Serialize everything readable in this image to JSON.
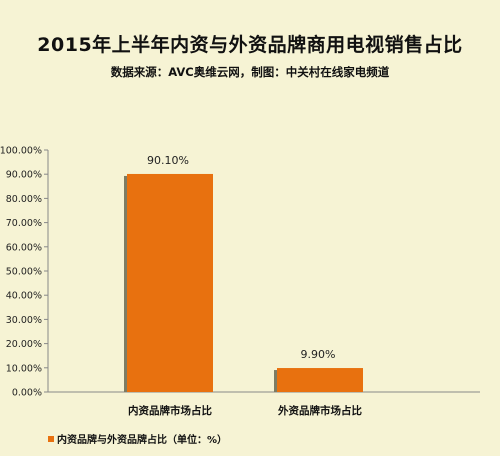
{
  "chart_data": {
    "type": "bar",
    "title": "2015年上半年内资与外资品牌商用电视销售占比",
    "subtitle": "数据来源：AVC奥维云网，制图：中关村在线家电频道",
    "categories": [
      "内资品牌市场占比",
      "外资品牌市场占比"
    ],
    "series": [
      {
        "name": "内资品牌与外资品牌占比（单位：%）",
        "values": [
          90.1,
          9.9
        ]
      }
    ],
    "data_labels": [
      "90.10%",
      "9.90%"
    ],
    "y_ticks": [
      "0.00%",
      "10.00%",
      "20.00%",
      "30.00%",
      "40.00%",
      "50.00%",
      "60.00%",
      "70.00%",
      "80.00%",
      "90.00%",
      "100.00%"
    ],
    "ylim": [
      0,
      100
    ],
    "grid": false,
    "legend_position": "bottom-left",
    "colors": {
      "bar": "#e8710f",
      "bar_shadow": "#7d7c63",
      "background": "#f6f3d4"
    }
  }
}
